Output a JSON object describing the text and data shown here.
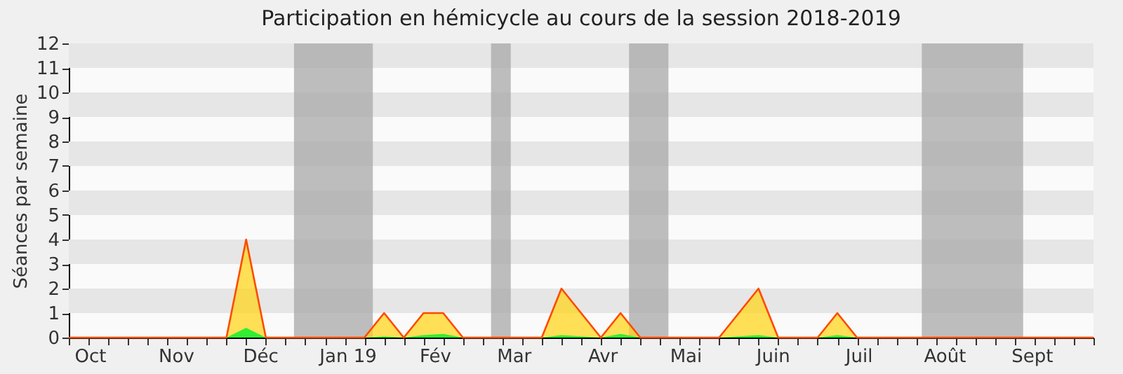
{
  "chart_data": {
    "type": "area",
    "title": "Participation en hémicycle au cours de la session 2018-2019",
    "ylabel": "Séances par semaine",
    "x": [
      "2018-09-24",
      "2018-10-01",
      "2018-10-08",
      "2018-10-15",
      "2018-10-22",
      "2018-10-29",
      "2018-11-05",
      "2018-11-12",
      "2018-11-19",
      "2018-11-26",
      "2018-12-03",
      "2018-12-10",
      "2018-12-17",
      "2018-12-24",
      "2018-12-31",
      "2019-01-07",
      "2019-01-14",
      "2019-01-21",
      "2019-01-28",
      "2019-02-04",
      "2019-02-11",
      "2019-02-18",
      "2019-02-25",
      "2019-03-04",
      "2019-03-11",
      "2019-03-18",
      "2019-03-25",
      "2019-04-01",
      "2019-04-08",
      "2019-04-15",
      "2019-04-22",
      "2019-04-29",
      "2019-05-06",
      "2019-05-13",
      "2019-05-20",
      "2019-05-27",
      "2019-06-03",
      "2019-06-10",
      "2019-06-17",
      "2019-06-24",
      "2019-07-01",
      "2019-07-08",
      "2019-07-15",
      "2019-07-22",
      "2019-07-29",
      "2019-08-05",
      "2019-08-12",
      "2019-08-19",
      "2019-08-26",
      "2019-09-02",
      "2019-09-09",
      "2019-09-16",
      "2019-09-23"
    ],
    "series": [
      {
        "color": "#ffd30f",
        "values": [
          0,
          0,
          0,
          0,
          0,
          0,
          0,
          0,
          0,
          4,
          0,
          0,
          0,
          0,
          0,
          0,
          1,
          0,
          1,
          1,
          0,
          0,
          0,
          0,
          0,
          2,
          1,
          0,
          1,
          0,
          0,
          0,
          0,
          0,
          1,
          2,
          0,
          0,
          0,
          1,
          0,
          0,
          0,
          0,
          0,
          0,
          0,
          0,
          0,
          0,
          0,
          0,
          0
        ]
      },
      {
        "color": "#33ee33",
        "values": [
          0,
          0,
          0,
          0,
          0,
          0,
          0,
          0,
          0,
          0.4,
          0,
          0,
          0,
          0,
          0,
          0,
          0.05,
          0,
          0.1,
          0.15,
          0,
          0,
          0,
          0,
          0,
          0.1,
          0.05,
          0,
          0.15,
          0,
          0,
          0,
          0,
          0,
          0.05,
          0.1,
          0,
          0,
          0,
          0.1,
          0,
          0,
          0,
          0,
          0,
          0,
          0,
          0,
          0,
          0,
          0,
          0,
          0
        ]
      }
    ],
    "xlim": [
      "2018-09-24",
      "2019-09-23"
    ],
    "xticks": [
      {
        "value": "2018-09-24",
        "label": null
      },
      {
        "value": "2018-10-01",
        "label": null
      },
      {
        "value": "2018-10-08",
        "label": null
      },
      {
        "value": "2018-10-15",
        "label": null
      },
      {
        "value": "2018-10-22",
        "label": null
      },
      {
        "value": "2018-10-29",
        "label": null
      },
      {
        "value": "2018-11-05",
        "label": null
      },
      {
        "value": "2018-11-12",
        "label": null
      },
      {
        "value": "2018-11-19",
        "label": null
      },
      {
        "value": "2018-11-26",
        "label": null
      },
      {
        "value": "2018-12-03",
        "label": null
      },
      {
        "value": "2018-12-10",
        "label": null
      },
      {
        "value": "2018-12-17",
        "label": null
      },
      {
        "value": "2018-12-24",
        "label": null
      },
      {
        "value": "2018-12-31",
        "label": null
      },
      {
        "value": "2019-01-07",
        "label": null
      },
      {
        "value": "2019-01-14",
        "label": null
      },
      {
        "value": "2019-01-21",
        "label": null
      },
      {
        "value": "2019-01-28",
        "label": null
      },
      {
        "value": "2019-02-04",
        "label": null
      },
      {
        "value": "2019-02-11",
        "label": null
      },
      {
        "value": "2019-02-18",
        "label": null
      },
      {
        "value": "2019-02-25",
        "label": null
      },
      {
        "value": "2019-03-04",
        "label": null
      },
      {
        "value": "2019-03-11",
        "label": null
      },
      {
        "value": "2019-03-18",
        "label": null
      },
      {
        "value": "2019-03-25",
        "label": null
      },
      {
        "value": "2019-04-01",
        "label": null
      },
      {
        "value": "2019-04-08",
        "label": null
      },
      {
        "value": "2019-04-15",
        "label": null
      },
      {
        "value": "2019-04-22",
        "label": null
      },
      {
        "value": "2019-04-29",
        "label": null
      },
      {
        "value": "2019-05-06",
        "label": null
      },
      {
        "value": "2019-05-13",
        "label": null
      },
      {
        "value": "2019-05-20",
        "label": null
      },
      {
        "value": "2019-05-27",
        "label": null
      },
      {
        "value": "2019-06-03",
        "label": null
      },
      {
        "value": "2019-06-10",
        "label": null
      },
      {
        "value": "2019-06-17",
        "label": null
      },
      {
        "value": "2019-06-24",
        "label": null
      },
      {
        "value": "2019-07-01",
        "label": null
      },
      {
        "value": "2019-07-08",
        "label": null
      },
      {
        "value": "2019-07-15",
        "label": null
      },
      {
        "value": "2019-07-22",
        "label": null
      },
      {
        "value": "2019-07-29",
        "label": null
      },
      {
        "value": "2019-08-05",
        "label": null
      },
      {
        "value": "2019-08-12",
        "label": null
      },
      {
        "value": "2019-08-19",
        "label": null
      },
      {
        "value": "2019-08-26",
        "label": null
      },
      {
        "value": "2019-09-02",
        "label": null
      },
      {
        "value": "2019-09-09",
        "label": null
      },
      {
        "value": "2019-09-16",
        "label": null
      },
      {
        "value": "2019-09-23",
        "label": null
      },
      {
        "value": "2018-10-01T12:00",
        "label": "Oct"
      },
      {
        "value": "2018-11-01",
        "label": "Nov"
      },
      {
        "value": "2018-12-01",
        "label": "Déc"
      },
      {
        "value": "2019-01-01",
        "label": "Jan 19"
      },
      {
        "value": "2019-02-01",
        "label": "Fév"
      },
      {
        "value": "2019-03-01",
        "label": "Mar"
      },
      {
        "value": "2019-04-01T12:00",
        "label": "Avr"
      },
      {
        "value": "2019-05-01",
        "label": "Mai"
      },
      {
        "value": "2019-06-01",
        "label": "Juin"
      },
      {
        "value": "2019-07-01T12:00",
        "label": "Juil"
      },
      {
        "value": "2019-08-01",
        "label": "Août"
      },
      {
        "value": "2019-09-01",
        "label": "Sept"
      }
    ],
    "ylim": [
      0,
      12
    ],
    "yticks": [
      0,
      1,
      2,
      3,
      4,
      5,
      6,
      7,
      8,
      9,
      10,
      11,
      12
    ],
    "bands": [
      {
        "axis": "y",
        "from": 1,
        "to": 2,
        "color": "#e6e6e6"
      },
      {
        "axis": "y",
        "from": 3,
        "to": 4,
        "color": "#e6e6e6"
      },
      {
        "axis": "y",
        "from": 5,
        "to": 6,
        "color": "#e6e6e6"
      },
      {
        "axis": "y",
        "from": 7,
        "to": 8,
        "color": "#e6e6e6"
      },
      {
        "axis": "y",
        "from": 9,
        "to": 10,
        "color": "#e6e6e6"
      },
      {
        "axis": "y",
        "from": 11,
        "to": 12,
        "color": "#e6e6e6"
      },
      {
        "axis": "x",
        "from": "2018-12-13",
        "to": "2019-01-10",
        "color": "#a8a8a8"
      },
      {
        "axis": "x",
        "from": "2019-02-21",
        "to": "2019-02-28",
        "color": "#a8a8a8"
      },
      {
        "axis": "x",
        "from": "2019-04-11",
        "to": "2019-04-25",
        "color": "#a8a8a8"
      },
      {
        "axis": "x",
        "from": "2019-07-24",
        "to": "2019-08-29",
        "color": "#a8a8a8"
      }
    ]
  }
}
